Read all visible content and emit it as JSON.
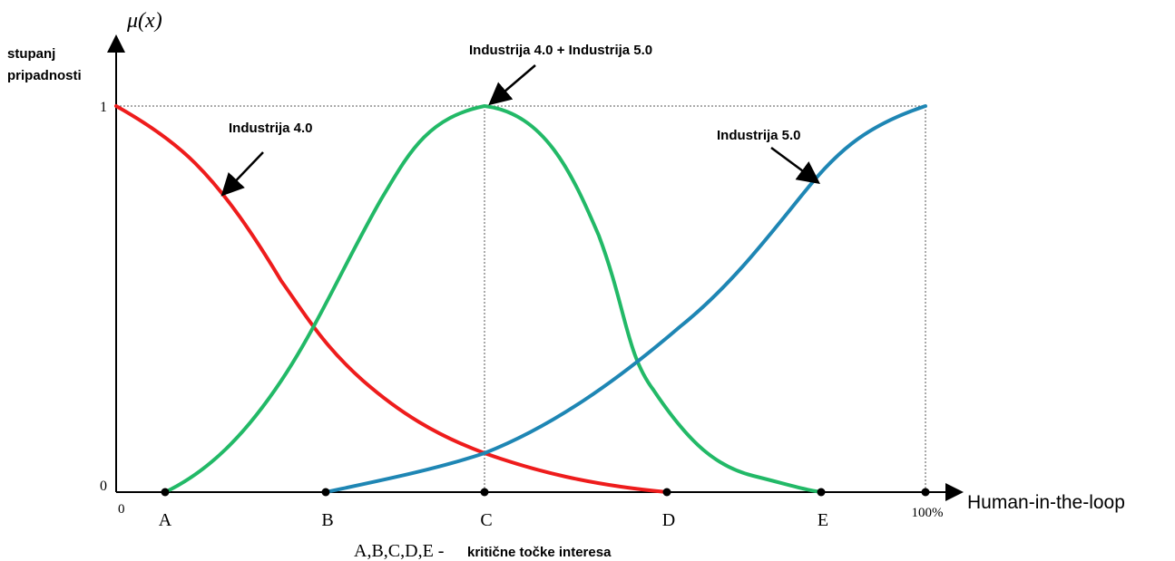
{
  "axis": {
    "y_symbol": "μ(x)",
    "y_label": [
      "stupanj",
      "pripadnosti"
    ],
    "y_ticks": [
      "1",
      "0"
    ],
    "x_label": "Human-in-the-loop",
    "x_ticks": [
      "0",
      "A",
      "B",
      "C",
      "D",
      "E",
      "100%"
    ]
  },
  "annotations": [
    "Industrija 4.0 + Industrija 5.0",
    "Industrija 4.0",
    "Industrija 5.0"
  ],
  "legend": {
    "points": "A,B,C,D,E -",
    "text": "kritične točke interesa"
  }
}
